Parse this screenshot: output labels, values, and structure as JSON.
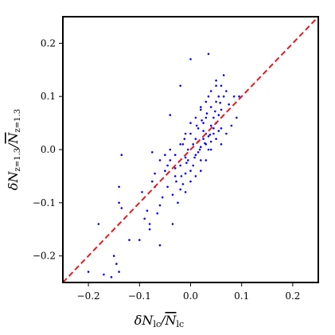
{
  "chart_data": {
    "type": "scatter",
    "title": "",
    "xlabel": "δN_lc/N̄_lc",
    "ylabel": "δN_z=1.3/N̄_z=1.3",
    "xlim": [
      -0.25,
      0.25
    ],
    "ylim": [
      -0.25,
      0.25
    ],
    "x_ticks": [
      -0.2,
      -0.1,
      0.0,
      0.1,
      0.2
    ],
    "y_ticks": [
      -0.2,
      -0.1,
      0.0,
      0.1,
      0.2
    ],
    "x_tick_labels": [
      "−0.2",
      "−0.1",
      "0.0",
      "0.1",
      "0.2"
    ],
    "y_tick_labels": [
      "−0.2",
      "−0.1",
      "0.0",
      "0.1",
      "0.2"
    ],
    "grid": false,
    "marker_color": "#0000ff",
    "reference_line": {
      "style": "dashed",
      "color": "#e41a1c",
      "from": [
        -0.25,
        -0.25
      ],
      "to": [
        0.25,
        0.25
      ]
    },
    "points": [
      [
        -0.2,
        -0.23
      ],
      [
        -0.18,
        -0.14
      ],
      [
        -0.17,
        -0.235
      ],
      [
        -0.155,
        -0.24
      ],
      [
        -0.15,
        -0.2
      ],
      [
        -0.145,
        -0.215
      ],
      [
        -0.14,
        -0.23
      ],
      [
        -0.14,
        -0.1
      ],
      [
        -0.135,
        -0.11
      ],
      [
        -0.14,
        -0.07
      ],
      [
        -0.135,
        -0.01
      ],
      [
        -0.12,
        -0.17
      ],
      [
        -0.1,
        -0.17
      ],
      [
        -0.095,
        -0.08
      ],
      [
        -0.09,
        -0.13
      ],
      [
        -0.085,
        -0.115
      ],
      [
        -0.08,
        -0.15
      ],
      [
        -0.08,
        -0.14
      ],
      [
        -0.075,
        -0.06
      ],
      [
        -0.075,
        -0.005
      ],
      [
        -0.07,
        -0.045
      ],
      [
        -0.065,
        -0.12
      ],
      [
        -0.06,
        -0.18
      ],
      [
        -0.06,
        -0.105
      ],
      [
        -0.055,
        -0.09
      ],
      [
        -0.05,
        -0.01
      ],
      [
        -0.045,
        -0.07
      ],
      [
        -0.04,
        -0.02
      ],
      [
        -0.04,
        0.065
      ],
      [
        -0.035,
        -0.14
      ],
      [
        -0.03,
        -0.05
      ],
      [
        -0.03,
        -0.035
      ],
      [
        -0.02,
        0.12
      ],
      [
        -0.02,
        -0.075
      ],
      [
        -0.02,
        -0.03
      ],
      [
        -0.015,
        -0.065
      ],
      [
        -0.015,
        0.01
      ],
      [
        -0.01,
        -0.015
      ],
      [
        -0.01,
        -0.045
      ],
      [
        -0.005,
        0.0
      ],
      [
        -0.005,
        -0.02
      ],
      [
        0.0,
        0.17
      ],
      [
        0.0,
        -0.06
      ],
      [
        0.0,
        0.03
      ],
      [
        0.005,
        -0.03
      ],
      [
        0.005,
        0.01
      ],
      [
        0.01,
        -0.01
      ],
      [
        0.01,
        0.02
      ],
      [
        0.015,
        0.04
      ],
      [
        0.015,
        -0.005
      ],
      [
        0.02,
        0.075
      ],
      [
        0.02,
        -0.04
      ],
      [
        0.02,
        0.005
      ],
      [
        0.025,
        0.02
      ],
      [
        0.025,
        0.05
      ],
      [
        0.03,
        -0.02
      ],
      [
        0.03,
        0.03
      ],
      [
        0.03,
        0.06
      ],
      [
        0.035,
        0.18
      ],
      [
        0.035,
        0.0
      ],
      [
        0.035,
        0.1
      ],
      [
        0.04,
        0.045
      ],
      [
        0.04,
        0.015
      ],
      [
        0.04,
        0.08
      ],
      [
        0.045,
        0.06
      ],
      [
        0.045,
        0.03
      ],
      [
        0.05,
        0.12
      ],
      [
        0.05,
        0.09
      ],
      [
        0.05,
        0.05
      ],
      [
        0.055,
        0.1
      ],
      [
        0.055,
        0.065
      ],
      [
        0.06,
        0.075
      ],
      [
        0.06,
        0.04
      ],
      [
        0.065,
        0.1
      ],
      [
        0.07,
        0.11
      ],
      [
        0.075,
        0.085
      ],
      [
        0.08,
        0.045
      ],
      [
        0.085,
        0.1
      ],
      [
        0.09,
        0.06
      ],
      [
        0.095,
        0.1
      ],
      [
        -0.025,
        -0.1
      ],
      [
        -0.01,
        -0.08
      ],
      [
        0.0,
        -0.04
      ],
      [
        0.01,
        -0.05
      ],
      [
        0.02,
        -0.02
      ],
      [
        0.03,
        0.01
      ],
      [
        0.04,
        0.0
      ],
      [
        0.05,
        0.02
      ],
      [
        0.06,
        0.01
      ],
      [
        0.07,
        0.03
      ],
      [
        -0.02,
        0.01
      ],
      [
        -0.01,
        0.03
      ],
      [
        0.0,
        0.05
      ],
      [
        0.01,
        0.06
      ],
      [
        0.02,
        0.08
      ],
      [
        0.03,
        0.09
      ],
      [
        0.04,
        0.11
      ],
      [
        0.05,
        0.13
      ],
      [
        0.06,
        0.12
      ],
      [
        0.065,
        0.14
      ],
      [
        -0.03,
        -0.01
      ],
      [
        -0.04,
        0.0
      ],
      [
        -0.05,
        -0.04
      ],
      [
        -0.06,
        -0.02
      ],
      [
        -0.07,
        -0.07
      ],
      [
        0.015,
        0.015
      ],
      [
        0.025,
        0.035
      ],
      [
        0.035,
        0.025
      ],
      [
        0.045,
        0.04
      ],
      [
        0.055,
        0.035
      ],
      [
        -0.008,
        -0.025
      ],
      [
        0.008,
        -0.015
      ],
      [
        0.018,
        0.0
      ],
      [
        0.028,
        0.012
      ],
      [
        0.038,
        0.028
      ],
      [
        0.048,
        0.072
      ],
      [
        0.058,
        0.088
      ],
      [
        0.012,
        0.045
      ],
      [
        0.022,
        0.055
      ],
      [
        0.032,
        0.068
      ],
      [
        -0.012,
        0.02
      ],
      [
        -0.018,
        -0.05
      ],
      [
        -0.028,
        -0.06
      ],
      [
        -0.035,
        -0.085
      ],
      [
        -0.045,
        -0.03
      ]
    ]
  }
}
